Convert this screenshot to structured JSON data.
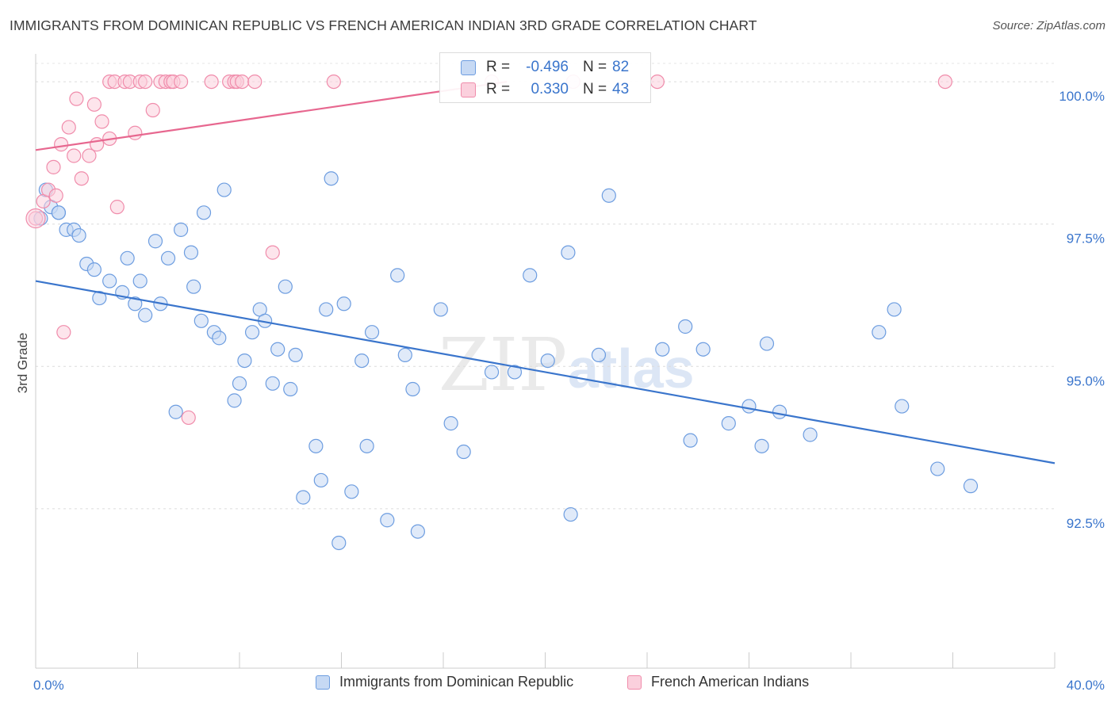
{
  "header": {
    "title": "IMMIGRANTS FROM DOMINICAN REPUBLIC VS FRENCH AMERICAN INDIAN 3RD GRADE CORRELATION CHART",
    "source": "Source: ZipAtlas.com"
  },
  "watermark": {
    "part1": "ZIP",
    "part2": "atlas"
  },
  "stats_legend": {
    "rows": [
      {
        "r_label": "R =",
        "r_value": "-0.496",
        "n_label": "N =",
        "n_value": "82",
        "color": "#6d9de0"
      },
      {
        "r_label": "R =",
        "r_value": "0.330",
        "n_label": "N =",
        "n_value": "43",
        "color": "#f08cab"
      }
    ]
  },
  "bottom_legend": [
    {
      "label": "Immigrants from Dominican Republic",
      "color": "#6d9de0"
    },
    {
      "label": "French American Indians",
      "color": "#f08cab"
    }
  ],
  "chart_data": {
    "type": "scatter",
    "ylabel": "3rd Grade",
    "xlim": [
      0,
      40
    ],
    "ylim": [
      89.7,
      100.6
    ],
    "x_tick_labels": [
      {
        "value": 0,
        "label": "0.0%"
      },
      {
        "value": 40,
        "label": "40.0%"
      }
    ],
    "y_tick_labels": [
      {
        "value": 100,
        "label": "100.0%"
      },
      {
        "value": 97.5,
        "label": "97.5%"
      },
      {
        "value": 95,
        "label": "95.0%"
      },
      {
        "value": 92.5,
        "label": "92.5%"
      }
    ],
    "x_minor_ticks": [
      0,
      4,
      8,
      12,
      16,
      20,
      24,
      28,
      32,
      36,
      40
    ],
    "grid": true,
    "series": [
      {
        "name": "Immigrants from Dominican Republic",
        "color": "#6d9de0",
        "trend": {
          "x": [
            0,
            40
          ],
          "y": [
            96.5,
            93.3
          ]
        },
        "points": [
          [
            0.2,
            97.6
          ],
          [
            0.4,
            98.1
          ],
          [
            0.6,
            97.8
          ],
          [
            0.9,
            97.7
          ],
          [
            1.2,
            97.4
          ],
          [
            1.5,
            97.4
          ],
          [
            1.7,
            97.3
          ],
          [
            2.0,
            96.8
          ],
          [
            2.3,
            96.7
          ],
          [
            2.5,
            96.2
          ],
          [
            2.9,
            96.5
          ],
          [
            3.4,
            96.3
          ],
          [
            3.6,
            96.9
          ],
          [
            3.9,
            96.1
          ],
          [
            4.1,
            96.5
          ],
          [
            4.3,
            95.9
          ],
          [
            4.7,
            97.2
          ],
          [
            4.9,
            96.1
          ],
          [
            5.2,
            96.9
          ],
          [
            5.5,
            94.2
          ],
          [
            5.7,
            97.4
          ],
          [
            6.1,
            97.0
          ],
          [
            6.2,
            96.4
          ],
          [
            6.5,
            95.8
          ],
          [
            6.6,
            97.7
          ],
          [
            7.0,
            95.6
          ],
          [
            7.2,
            95.5
          ],
          [
            7.4,
            98.1
          ],
          [
            7.8,
            94.4
          ],
          [
            8.0,
            94.7
          ],
          [
            8.2,
            95.1
          ],
          [
            8.5,
            95.6
          ],
          [
            8.8,
            96.0
          ],
          [
            9.0,
            95.8
          ],
          [
            9.3,
            94.7
          ],
          [
            9.5,
            95.3
          ],
          [
            9.8,
            96.4
          ],
          [
            10.0,
            94.6
          ],
          [
            10.2,
            95.2
          ],
          [
            10.5,
            92.7
          ],
          [
            11.0,
            93.6
          ],
          [
            11.2,
            93.0
          ],
          [
            11.4,
            96.0
          ],
          [
            11.6,
            98.3
          ],
          [
            11.9,
            91.9
          ],
          [
            12.1,
            96.1
          ],
          [
            12.4,
            92.8
          ],
          [
            12.8,
            95.1
          ],
          [
            13.0,
            93.6
          ],
          [
            13.2,
            95.6
          ],
          [
            13.8,
            92.3
          ],
          [
            14.2,
            96.6
          ],
          [
            14.5,
            95.2
          ],
          [
            14.8,
            94.6
          ],
          [
            15.0,
            92.1
          ],
          [
            15.9,
            96.0
          ],
          [
            16.3,
            94.0
          ],
          [
            16.8,
            93.5
          ],
          [
            17.9,
            94.9
          ],
          [
            18.8,
            94.9
          ],
          [
            19.4,
            96.6
          ],
          [
            20.1,
            95.1
          ],
          [
            20.9,
            97.0
          ],
          [
            21.0,
            92.4
          ],
          [
            22.1,
            95.2
          ],
          [
            22.5,
            98.0
          ],
          [
            24.6,
            95.3
          ],
          [
            25.5,
            95.7
          ],
          [
            25.7,
            93.7
          ],
          [
            26.2,
            95.3
          ],
          [
            27.2,
            94.0
          ],
          [
            28.0,
            94.3
          ],
          [
            28.5,
            93.6
          ],
          [
            28.7,
            95.4
          ],
          [
            29.2,
            94.2
          ],
          [
            30.4,
            93.8
          ],
          [
            33.1,
            95.6
          ],
          [
            33.7,
            96.0
          ],
          [
            34.0,
            94.3
          ],
          [
            35.4,
            93.2
          ],
          [
            36.7,
            92.9
          ],
          [
            0.9,
            97.7
          ]
        ]
      },
      {
        "name": "French American Indians",
        "color": "#f08cab",
        "trend": {
          "x": [
            0,
            18.5
          ],
          "y": [
            98.8,
            100.0
          ]
        },
        "points": [
          [
            0.0,
            97.6
          ],
          [
            0.3,
            97.9
          ],
          [
            0.5,
            98.1
          ],
          [
            0.7,
            98.5
          ],
          [
            0.8,
            98.0
          ],
          [
            1.0,
            98.9
          ],
          [
            1.1,
            95.6
          ],
          [
            1.3,
            99.2
          ],
          [
            1.5,
            98.7
          ],
          [
            1.6,
            99.7
          ],
          [
            1.8,
            98.3
          ],
          [
            2.1,
            98.7
          ],
          [
            2.3,
            99.6
          ],
          [
            2.4,
            98.9
          ],
          [
            2.6,
            99.3
          ],
          [
            2.9,
            100.0
          ],
          [
            2.9,
            99.0
          ],
          [
            3.1,
            100.0
          ],
          [
            3.2,
            97.8
          ],
          [
            3.5,
            100.0
          ],
          [
            3.7,
            100.0
          ],
          [
            3.9,
            99.1
          ],
          [
            4.1,
            100.0
          ],
          [
            4.3,
            100.0
          ],
          [
            4.6,
            99.5
          ],
          [
            4.9,
            100.0
          ],
          [
            5.1,
            100.0
          ],
          [
            5.3,
            100.0
          ],
          [
            5.4,
            100.0
          ],
          [
            5.7,
            100.0
          ],
          [
            6.0,
            94.1
          ],
          [
            6.9,
            100.0
          ],
          [
            7.6,
            100.0
          ],
          [
            7.8,
            100.0
          ],
          [
            7.9,
            100.0
          ],
          [
            8.1,
            100.0
          ],
          [
            8.6,
            100.0
          ],
          [
            9.3,
            97.0
          ],
          [
            11.7,
            100.0
          ],
          [
            17.9,
            100.0
          ],
          [
            21.1,
            100.0
          ],
          [
            24.4,
            100.0
          ],
          [
            35.7,
            100.0
          ]
        ]
      }
    ]
  }
}
